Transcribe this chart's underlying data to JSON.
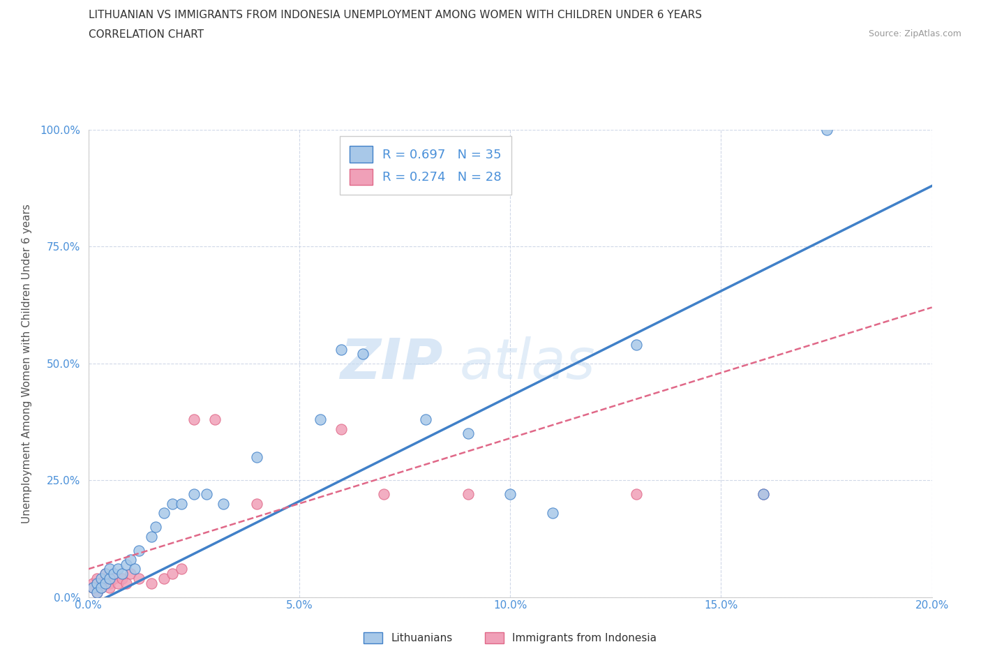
{
  "title_line1": "LITHUANIAN VS IMMIGRANTS FROM INDONESIA UNEMPLOYMENT AMONG WOMEN WITH CHILDREN UNDER 6 YEARS",
  "title_line2": "CORRELATION CHART",
  "source": "Source: ZipAtlas.com",
  "ylabel": "Unemployment Among Women with Children Under 6 years",
  "xlim": [
    0.0,
    0.2
  ],
  "ylim": [
    0.0,
    1.0
  ],
  "xticks": [
    0.0,
    0.05,
    0.1,
    0.15,
    0.2
  ],
  "yticks": [
    0.0,
    0.25,
    0.5,
    0.75,
    1.0
  ],
  "xticklabels": [
    "0.0%",
    "5.0%",
    "10.0%",
    "15.0%",
    "20.0%"
  ],
  "yticklabels": [
    "0.0%",
    "25.0%",
    "50.0%",
    "75.0%",
    "100.0%"
  ],
  "lithuanian_color": "#a8c8e8",
  "indonesian_color": "#f0a0b8",
  "lithuanian_line_color": "#4080c8",
  "indonesian_line_color": "#e06888",
  "R_lithuanian": 0.697,
  "N_lithuanian": 35,
  "R_indonesian": 0.274,
  "N_indonesian": 28,
  "legend_label_1": "Lithuanians",
  "legend_label_2": "Immigrants from Indonesia",
  "watermark_part1": "ZIP",
  "watermark_part2": "atlas",
  "background_color": "#ffffff",
  "grid_color": "#d0d8e8",
  "lith_x": [
    0.001,
    0.002,
    0.002,
    0.003,
    0.003,
    0.004,
    0.004,
    0.005,
    0.005,
    0.006,
    0.007,
    0.008,
    0.009,
    0.01,
    0.011,
    0.012,
    0.015,
    0.016,
    0.018,
    0.02,
    0.022,
    0.025,
    0.028,
    0.032,
    0.04,
    0.055,
    0.06,
    0.065,
    0.08,
    0.09,
    0.1,
    0.11,
    0.13,
    0.16,
    0.175
  ],
  "lith_y": [
    0.02,
    0.03,
    0.01,
    0.04,
    0.02,
    0.03,
    0.05,
    0.04,
    0.06,
    0.05,
    0.06,
    0.05,
    0.07,
    0.08,
    0.06,
    0.1,
    0.13,
    0.15,
    0.18,
    0.2,
    0.2,
    0.22,
    0.22,
    0.2,
    0.3,
    0.38,
    0.53,
    0.52,
    0.38,
    0.35,
    0.22,
    0.18,
    0.54,
    0.22,
    1.0
  ],
  "indo_x": [
    0.001,
    0.001,
    0.002,
    0.002,
    0.003,
    0.003,
    0.004,
    0.004,
    0.005,
    0.005,
    0.006,
    0.007,
    0.008,
    0.009,
    0.01,
    0.012,
    0.015,
    0.018,
    0.02,
    0.022,
    0.025,
    0.03,
    0.04,
    0.06,
    0.07,
    0.09,
    0.13,
    0.16
  ],
  "indo_y": [
    0.03,
    0.02,
    0.04,
    0.01,
    0.03,
    0.02,
    0.04,
    0.05,
    0.03,
    0.02,
    0.04,
    0.03,
    0.04,
    0.03,
    0.05,
    0.04,
    0.03,
    0.04,
    0.05,
    0.06,
    0.38,
    0.38,
    0.2,
    0.36,
    0.22,
    0.22,
    0.22,
    0.22
  ],
  "lith_line_x0": 0.0,
  "lith_line_x1": 0.2,
  "lith_line_y0": -0.02,
  "lith_line_y1": 0.88,
  "indo_line_x0": 0.0,
  "indo_line_x1": 0.2,
  "indo_line_y0": 0.06,
  "indo_line_y1": 0.62
}
